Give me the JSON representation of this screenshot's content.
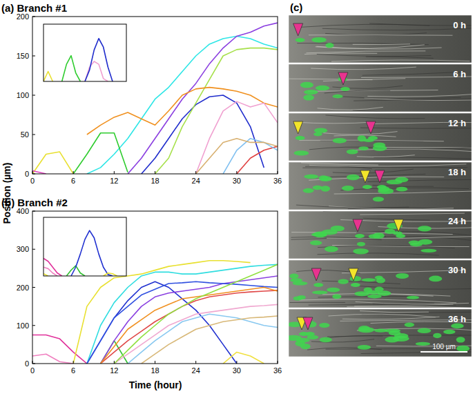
{
  "chart_data": [
    {
      "type": "line",
      "title": "(a) Branch #1",
      "x": [
        0,
        2,
        4,
        6,
        8,
        10,
        12,
        14,
        16,
        18,
        20,
        22,
        24,
        26,
        28,
        30,
        32,
        34,
        36
      ],
      "xlim": [
        0,
        36
      ],
      "ylim": [
        0,
        200
      ],
      "xticks": [
        0,
        6,
        12,
        18,
        24,
        30,
        36
      ],
      "yticks": [
        0,
        50,
        100,
        150,
        200
      ],
      "series": [
        {
          "color": "#2ee6e6",
          "values": [
            null,
            null,
            null,
            null,
            0,
            8,
            25,
            45,
            70,
            95,
            110,
            130,
            150,
            165,
            172,
            175,
            172,
            165,
            160
          ]
        },
        {
          "color": "#8a3ee0",
          "values": [
            null,
            null,
            null,
            null,
            null,
            null,
            null,
            0,
            20,
            45,
            70,
            95,
            115,
            140,
            160,
            175,
            180,
            188,
            192
          ]
        },
        {
          "color": "#1f2ccc",
          "values": [
            null,
            null,
            null,
            null,
            null,
            null,
            null,
            null,
            0,
            20,
            45,
            70,
            88,
            98,
            100,
            90,
            60,
            8,
            null
          ]
        },
        {
          "color": "#2ecc2e",
          "values": [
            null,
            null,
            null,
            0,
            25,
            52,
            52,
            2,
            null,
            null,
            null,
            null,
            null,
            null,
            null,
            null,
            null,
            null,
            null
          ]
        },
        {
          "color": "#a6e04a",
          "values": [
            null,
            null,
            null,
            null,
            null,
            null,
            null,
            null,
            null,
            0,
            20,
            60,
            90,
            120,
            150,
            158,
            160,
            160,
            158
          ]
        },
        {
          "color": "#f0901e",
          "values": [
            null,
            null,
            null,
            null,
            50,
            62,
            72,
            78,
            70,
            62,
            80,
            100,
            108,
            110,
            108,
            105,
            100,
            90,
            85
          ]
        },
        {
          "color": "#e8e030",
          "values": [
            0,
            25,
            28,
            0,
            null,
            null,
            null,
            null,
            null,
            null,
            null,
            null,
            null,
            null,
            null,
            null,
            null,
            null,
            null
          ]
        },
        {
          "color": "#e040c0",
          "values": [
            4,
            0,
            null,
            null,
            null,
            null,
            null,
            null,
            null,
            null,
            null,
            null,
            null,
            null,
            null,
            null,
            null,
            null,
            null
          ]
        },
        {
          "color": "#f0a0d0",
          "values": [
            null,
            null,
            null,
            null,
            null,
            null,
            null,
            null,
            null,
            null,
            null,
            null,
            0,
            45,
            80,
            92,
            85,
            90,
            65
          ]
        },
        {
          "color": "#e04040",
          "values": [
            null,
            null,
            null,
            null,
            null,
            null,
            null,
            null,
            null,
            null,
            null,
            null,
            null,
            null,
            null,
            0,
            20,
            30,
            35
          ]
        },
        {
          "color": "#80c0f0",
          "values": [
            null,
            null,
            null,
            null,
            null,
            null,
            null,
            null,
            null,
            null,
            null,
            null,
            null,
            null,
            0,
            30,
            45,
            40,
            30
          ]
        },
        {
          "color": "#d8b070",
          "values": [
            null,
            null,
            null,
            null,
            null,
            null,
            null,
            null,
            null,
            null,
            null,
            null,
            0,
            20,
            40,
            45,
            40,
            40,
            35
          ]
        }
      ]
    },
    {
      "type": "line",
      "tick_labels": false,
      "x": [
        0,
        2,
        4,
        6,
        8,
        10,
        12,
        14,
        16,
        18,
        20,
        22,
        24,
        26,
        28,
        30,
        32,
        34,
        36
      ],
      "xlim": [
        0,
        36
      ],
      "ylim": [
        0,
        200
      ],
      "series": [
        {
          "color": "#e8e030",
          "values": [
            0,
            35,
            0,
            null,
            null,
            null,
            null,
            null,
            null,
            null,
            null,
            null,
            null,
            null,
            null,
            null,
            null,
            null,
            null
          ]
        },
        {
          "color": "#2ecc2e",
          "values": [
            null,
            null,
            null,
            null,
            0,
            60,
            90,
            30,
            0,
            null,
            null,
            null,
            null,
            null,
            null,
            null,
            null,
            null,
            null
          ]
        },
        {
          "color": "#f0a0d0",
          "values": [
            null,
            null,
            null,
            null,
            null,
            null,
            null,
            null,
            null,
            0,
            50,
            70,
            60,
            10,
            0,
            null,
            null,
            null,
            null
          ]
        },
        {
          "color": "#1f2ccc",
          "values": [
            null,
            null,
            null,
            null,
            null,
            null,
            null,
            null,
            null,
            0,
            40,
            110,
            150,
            120,
            50,
            0,
            null,
            null,
            null
          ]
        }
      ]
    },
    {
      "type": "line",
      "title": "(b) Branch #2",
      "x": [
        0,
        2,
        4,
        6,
        8,
        10,
        12,
        14,
        16,
        18,
        20,
        22,
        24,
        26,
        28,
        30,
        32,
        34,
        36
      ],
      "xlim": [
        0,
        36
      ],
      "ylim": [
        0,
        400
      ],
      "xticks": [
        0,
        6,
        12,
        18,
        24,
        30,
        36
      ],
      "yticks": [
        0,
        100,
        200,
        300,
        400
      ],
      "series": [
        {
          "color": "#e0309a",
          "values": [
            75,
            75,
            65,
            30,
            0,
            null,
            null,
            null,
            null,
            null,
            null,
            null,
            null,
            null,
            null,
            null,
            null,
            null,
            null
          ]
        },
        {
          "color": "#f080c0",
          "values": [
            20,
            25,
            5,
            0,
            null,
            null,
            null,
            null,
            null,
            null,
            null,
            null,
            null,
            null,
            null,
            null,
            null,
            null,
            null
          ]
        },
        {
          "color": "#2030d0",
          "values": [
            null,
            null,
            null,
            null,
            0,
            60,
            120,
            165,
            200,
            215,
            200,
            170,
            140,
            100,
            50,
            0,
            null,
            null,
            null
          ]
        },
        {
          "color": "#e8e030",
          "values": [
            null,
            null,
            null,
            0,
            150,
            200,
            225,
            230,
            235,
            245,
            255,
            260,
            265,
            270,
            270,
            268,
            265,
            null,
            null
          ]
        },
        {
          "color": "#30dde0",
          "values": [
            null,
            null,
            null,
            null,
            0,
            100,
            160,
            200,
            230,
            240,
            240,
            235,
            235,
            240,
            245,
            250,
            255,
            258,
            260
          ]
        },
        {
          "color": "#30c030",
          "values": [
            null,
            null,
            null,
            null,
            null,
            0,
            60,
            0,
            null,
            null,
            null,
            null,
            null,
            null,
            null,
            null,
            null,
            null,
            null
          ]
        },
        {
          "color": "#8a40e0",
          "values": [
            null,
            null,
            null,
            null,
            null,
            0,
            60,
            110,
            150,
            175,
            185,
            190,
            195,
            200,
            210,
            215,
            220,
            225,
            230
          ]
        },
        {
          "color": "#3050e0",
          "values": [
            null,
            null,
            null,
            null,
            0,
            60,
            120,
            150,
            180,
            195,
            210,
            212,
            215,
            212,
            210,
            208,
            205,
            202,
            200
          ]
        },
        {
          "color": "#e04848",
          "values": [
            null,
            null,
            null,
            null,
            null,
            0,
            30,
            60,
            85,
            110,
            130,
            150,
            165,
            175,
            180,
            185,
            188,
            190,
            192
          ]
        },
        {
          "color": "#f09020",
          "values": [
            null,
            null,
            null,
            null,
            null,
            0,
            45,
            90,
            115,
            140,
            155,
            170,
            175,
            180,
            185,
            190,
            195,
            200,
            190
          ]
        },
        {
          "color": "#f0a8d0",
          "values": [
            null,
            null,
            null,
            null,
            null,
            null,
            0,
            25,
            50,
            75,
            100,
            115,
            130,
            135,
            140,
            145,
            150,
            152,
            155
          ]
        },
        {
          "color": "#88c8f0",
          "values": [
            null,
            null,
            null,
            null,
            null,
            null,
            null,
            0,
            30,
            60,
            85,
            110,
            120,
            130,
            125,
            120,
            110,
            100,
            95
          ]
        },
        {
          "color": "#d8b878",
          "values": [
            null,
            null,
            null,
            null,
            null,
            null,
            null,
            null,
            0,
            25,
            50,
            70,
            90,
            100,
            110,
            115,
            120,
            122,
            125
          ]
        },
        {
          "color": "#90e040",
          "values": [
            null,
            null,
            null,
            null,
            null,
            null,
            0,
            35,
            70,
            100,
            130,
            150,
            170,
            185,
            200,
            215,
            230,
            245,
            260
          ]
        },
        {
          "color": "#f0e040",
          "values": [
            null,
            null,
            null,
            null,
            null,
            null,
            null,
            null,
            null,
            null,
            null,
            null,
            null,
            null,
            0,
            30,
            20,
            0,
            null
          ]
        }
      ]
    },
    {
      "type": "line",
      "tick_labels": false,
      "x": [
        0,
        2,
        4,
        6,
        8,
        10,
        12,
        14,
        16,
        18,
        20,
        22,
        24,
        26,
        28,
        30,
        32,
        34,
        36
      ],
      "xlim": [
        0,
        36
      ],
      "ylim": [
        0,
        400
      ],
      "series": [
        {
          "color": "#e0309a",
          "values": [
            120,
            100,
            60,
            20,
            0,
            null,
            null,
            null,
            null,
            null,
            null,
            null,
            null,
            null,
            null,
            null,
            null,
            null,
            null
          ]
        },
        {
          "color": "#f080c0",
          "values": [
            60,
            50,
            20,
            0,
            null,
            null,
            null,
            null,
            null,
            null,
            null,
            null,
            null,
            null,
            null,
            null,
            null,
            null,
            null
          ]
        },
        {
          "color": "#30c030",
          "values": [
            null,
            null,
            null,
            null,
            null,
            0,
            40,
            70,
            20,
            0,
            null,
            null,
            null,
            null,
            null,
            null,
            null,
            null,
            null
          ]
        },
        {
          "color": "#2030d0",
          "values": [
            null,
            null,
            null,
            null,
            null,
            null,
            0,
            60,
            150,
            250,
            310,
            260,
            150,
            60,
            10,
            0,
            null,
            null,
            null
          ]
        },
        {
          "color": "#e8e030",
          "values": [
            15,
            0,
            null,
            null,
            null,
            null,
            null,
            null,
            null,
            null,
            null,
            null,
            null,
            0,
            20,
            15,
            0,
            null,
            null
          ]
        }
      ]
    }
  ],
  "axis_labels": {
    "x": "Time (hour)",
    "y": "Position (µm)"
  },
  "image_panel": {
    "label": "(c)",
    "frames": [
      {
        "time_label": "0 h",
        "markers": [
          {
            "color": "#e8338f",
            "position_um": 20
          }
        ]
      },
      {
        "time_label": "6 h",
        "markers": [
          {
            "color": "#e8338f",
            "position_um": 116
          }
        ]
      },
      {
        "time_label": "12 h",
        "markers": [
          {
            "color": "#f2e42a",
            "position_um": 20
          },
          {
            "color": "#e8338f",
            "position_um": 175
          }
        ]
      },
      {
        "time_label": "18 h",
        "markers": [
          {
            "color": "#f2e42a",
            "position_um": 163
          },
          {
            "color": "#e8338f",
            "position_um": 194
          }
        ]
      },
      {
        "time_label": "24 h",
        "markers": [
          {
            "color": "#e8338f",
            "position_um": 147
          },
          {
            "color": "#f2e42a",
            "position_um": 234
          }
        ]
      },
      {
        "time_label": "30 h",
        "markers": [
          {
            "color": "#e8338f",
            "position_um": 59
          },
          {
            "color": "#f2e42a",
            "position_um": 138
          }
        ]
      },
      {
        "time_label": "36 h",
        "markers": [
          {
            "color": "#f2e42a",
            "position_um": 28
          },
          {
            "color": "#e8338f",
            "position_um": 41
          }
        ]
      }
    ],
    "scale_bar": {
      "label": "100 µm",
      "length_um": 100
    }
  }
}
